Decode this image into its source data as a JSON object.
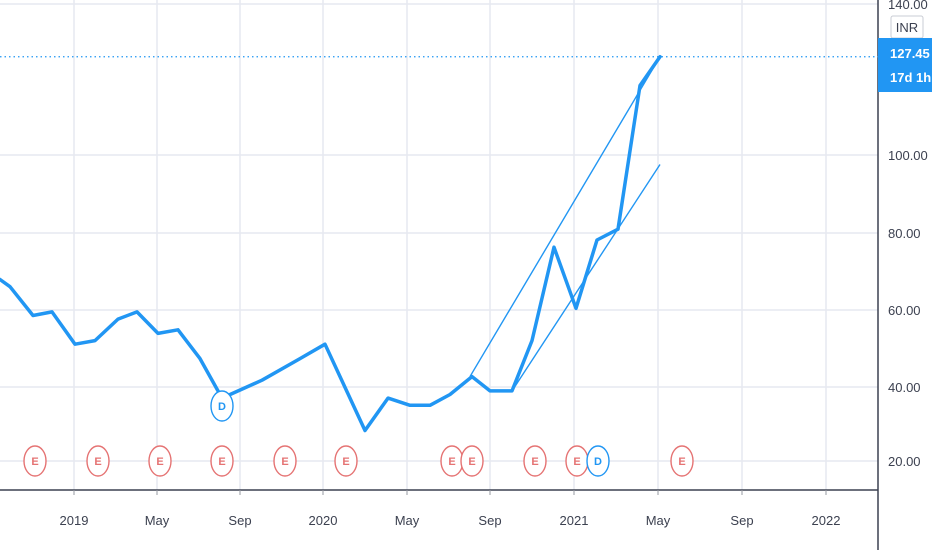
{
  "chart_data": {
    "type": "line",
    "currency": "INR",
    "price_label": "127.45",
    "countdown": "17d 1h",
    "y_ticks": [
      "140.00",
      "100.00",
      "80.00",
      "60.00",
      "40.00",
      "20.00"
    ],
    "x_ticks": [
      "2019",
      "May",
      "Sep",
      "2020",
      "May",
      "Sep",
      "2021",
      "May",
      "Sep",
      "2022"
    ],
    "ylim": [
      12,
      140
    ],
    "xlim": [
      0,
      932
    ],
    "series": [
      {
        "values": [
          [
            0,
            65
          ],
          [
            10,
            63
          ],
          [
            33,
            55
          ],
          [
            52,
            56
          ],
          [
            75,
            47
          ],
          [
            95,
            48
          ],
          [
            118,
            54
          ],
          [
            137,
            56
          ],
          [
            158,
            50
          ],
          [
            178,
            51
          ],
          [
            200,
            43
          ],
          [
            222,
            32
          ],
          [
            262,
            37
          ],
          [
            300,
            43
          ],
          [
            325,
            47
          ],
          [
            365,
            23
          ],
          [
            388,
            32
          ],
          [
            410,
            30
          ],
          [
            430,
            30
          ],
          [
            450,
            33
          ],
          [
            472,
            38
          ],
          [
            490,
            34
          ],
          [
            512,
            34
          ],
          [
            532,
            48
          ],
          [
            554,
            74
          ],
          [
            576,
            57
          ],
          [
            597,
            76
          ],
          [
            618,
            79
          ],
          [
            640,
            119
          ],
          [
            660,
            127
          ]
        ]
      }
    ],
    "trendlines": [
      {
        "from": [
          470,
          38
        ],
        "to": [
          660,
          127
        ]
      },
      {
        "from": [
          512,
          34
        ],
        "to": [
          660,
          97
        ]
      }
    ],
    "events": [
      {
        "label": "E",
        "x": 35,
        "kind": "earnings"
      },
      {
        "label": "E",
        "x": 98,
        "kind": "earnings"
      },
      {
        "label": "E",
        "x": 160,
        "kind": "earnings"
      },
      {
        "label": "E",
        "x": 222,
        "kind": "earnings"
      },
      {
        "label": "E",
        "x": 285,
        "kind": "earnings"
      },
      {
        "label": "E",
        "x": 346,
        "kind": "earnings"
      },
      {
        "label": "E",
        "x": 452,
        "kind": "earnings"
      },
      {
        "label": "E",
        "x": 472,
        "kind": "earnings"
      },
      {
        "label": "E",
        "x": 535,
        "kind": "earnings"
      },
      {
        "label": "E",
        "x": 577,
        "kind": "earnings"
      },
      {
        "label": "D",
        "x": 598,
        "kind": "dividend"
      },
      {
        "label": "E",
        "x": 682,
        "kind": "earnings"
      },
      {
        "label": "D",
        "x": 222,
        "kind": "dividend-on-chart"
      }
    ]
  },
  "colors": {
    "line": "#2196f3",
    "earnings": "#e57373",
    "dividend": "#2196f3",
    "grid": "#e6e9f0",
    "axis_text": "#3c4150"
  }
}
